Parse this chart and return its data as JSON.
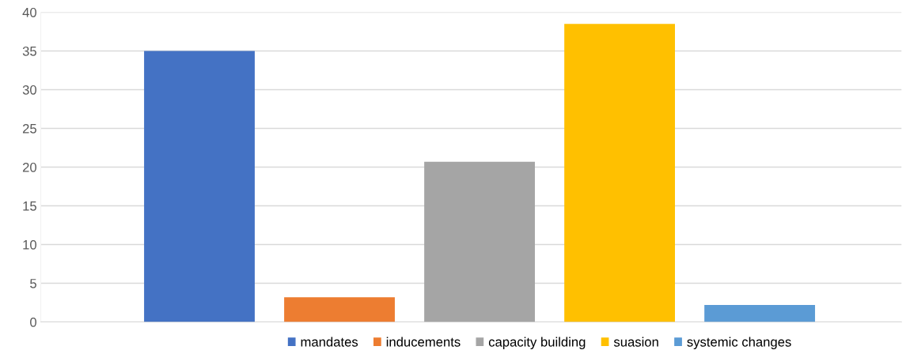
{
  "chart_data": {
    "type": "bar",
    "categories": [
      null
    ],
    "series": [
      {
        "name": "mandates",
        "color": "#4472c4",
        "values": [
          35
        ]
      },
      {
        "name": "inducements",
        "color": "#ed7d31",
        "values": [
          3.2
        ]
      },
      {
        "name": "capacity building",
        "color": "#a5a5a5",
        "values": [
          20.7
        ]
      },
      {
        "name": "suasion",
        "color": "#ffc000",
        "values": [
          38.5
        ]
      },
      {
        "name": "systemic changes",
        "color": "#5b9bd5",
        "values": [
          2.2
        ]
      }
    ],
    "ylim": [
      0,
      40
    ],
    "yticks": [
      0,
      5,
      10,
      15,
      20,
      25,
      30,
      35,
      40
    ],
    "grid": "y",
    "legend": "bottom"
  }
}
